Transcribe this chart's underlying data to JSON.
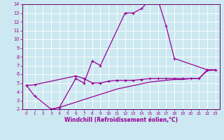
{
  "xlabel": "Windchill (Refroidissement éolien,°C)",
  "background_color": "#cce8f0",
  "line_color": "#990099",
  "line1_x": [
    0,
    1,
    3,
    4,
    6,
    7,
    8,
    9,
    12,
    13,
    14,
    15,
    16,
    17,
    18,
    22,
    23
  ],
  "line1_y": [
    4.7,
    3.5,
    2.0,
    2.2,
    5.5,
    5.0,
    7.5,
    7.0,
    13.0,
    13.0,
    13.5,
    14.5,
    14.5,
    11.5,
    7.8,
    6.5,
    6.5
  ],
  "line2_x": [
    0,
    1,
    6,
    7,
    8,
    9,
    10,
    11,
    12,
    13,
    14,
    15,
    16,
    17,
    18,
    19,
    20,
    21,
    22,
    23
  ],
  "line2_y": [
    4.7,
    4.8,
    5.8,
    5.5,
    5.0,
    5.0,
    5.2,
    5.3,
    5.3,
    5.3,
    5.4,
    5.5,
    5.5,
    5.5,
    5.5,
    5.5,
    5.5,
    5.5,
    6.5,
    6.5
  ],
  "line3_x": [
    3,
    4,
    5,
    6,
    7,
    8,
    9,
    10,
    11,
    12,
    13,
    14,
    15,
    16,
    17,
    18,
    19,
    20,
    21,
    22,
    23
  ],
  "line3_y": [
    2.0,
    2.2,
    2.5,
    2.8,
    3.1,
    3.4,
    3.7,
    4.0,
    4.3,
    4.5,
    4.7,
    4.9,
    5.1,
    5.2,
    5.3,
    5.4,
    5.4,
    5.5,
    5.5,
    6.4,
    6.5
  ],
  "ylim": [
    2,
    14
  ],
  "xlim": [
    -0.5,
    23.5
  ],
  "yticks": [
    2,
    3,
    4,
    5,
    6,
    7,
    8,
    9,
    10,
    11,
    12,
    13,
    14
  ],
  "xticks": [
    0,
    1,
    2,
    3,
    4,
    5,
    6,
    7,
    8,
    9,
    10,
    11,
    12,
    13,
    14,
    15,
    16,
    17,
    18,
    19,
    20,
    21,
    22,
    23
  ],
  "grid_color": "#aaddee",
  "spine_color": "#660066"
}
